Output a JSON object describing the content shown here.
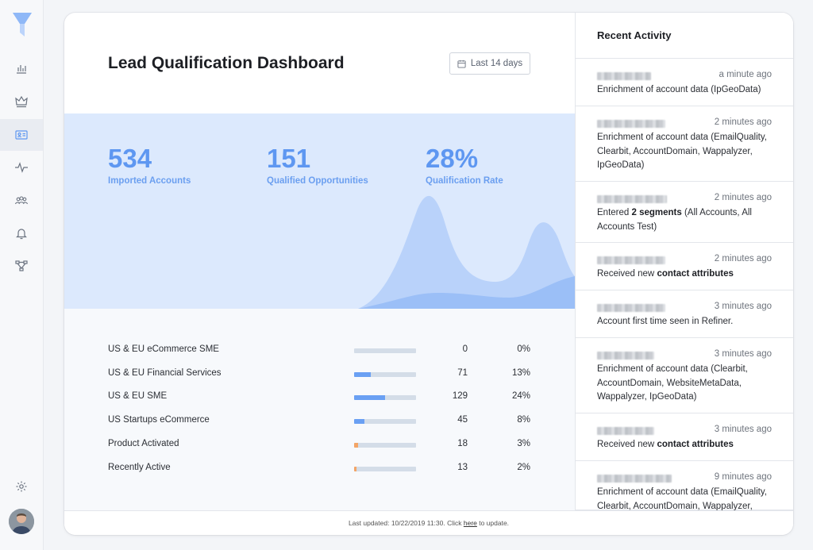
{
  "app": {
    "title": "Lead Qualification Dashboard"
  },
  "sidebar": {
    "items": [
      {
        "icon": "bar-chart-icon"
      },
      {
        "icon": "crown-icon"
      },
      {
        "icon": "contact-card-icon",
        "active": true
      },
      {
        "icon": "pulse-icon"
      },
      {
        "icon": "people-icon"
      },
      {
        "icon": "bell-icon"
      },
      {
        "icon": "workflow-icon"
      }
    ],
    "settings_icon": "gear-icon"
  },
  "header": {
    "title": "Lead Qualification Dashboard",
    "date_range_label": "Last 14 days"
  },
  "kpis": [
    {
      "value": "534",
      "label": "Imported Accounts"
    },
    {
      "value": "151",
      "label": "Qualified Opportunities"
    },
    {
      "value": "28%",
      "label": "Qualification Rate"
    }
  ],
  "segments": [
    {
      "name": "US & EU eCommerce SME",
      "count": "0",
      "pct": "0%",
      "fraction": 0.0,
      "color": "#6aa0f3"
    },
    {
      "name": "US & EU Financial Services",
      "count": "71",
      "pct": "13%",
      "fraction": 0.13,
      "color": "#6aa0f3"
    },
    {
      "name": "US & EU SME",
      "count": "129",
      "pct": "24%",
      "fraction": 0.24,
      "color": "#6aa0f3"
    },
    {
      "name": "US Startups eCommerce",
      "count": "45",
      "pct": "8%",
      "fraction": 0.08,
      "color": "#6aa0f3"
    },
    {
      "name": "Product Activated",
      "count": "18",
      "pct": "3%",
      "fraction": 0.03,
      "color": "#f3a567"
    },
    {
      "name": "Recently Active",
      "count": "13",
      "pct": "2%",
      "fraction": 0.02,
      "color": "#f3a567"
    }
  ],
  "footer": {
    "prefix": "Last updated: 10/22/2019 11:30. Click ",
    "link": "here",
    "suffix": " to update."
  },
  "activity": {
    "title": "Recent Activity",
    "items": [
      {
        "time": "a minute ago",
        "desc": [
          {
            "t": "Enrichment of account data (IpGeoData)"
          }
        ]
      },
      {
        "time": "2 minutes ago",
        "desc": [
          {
            "t": "Enrichment of account data (EmailQuality, Clearbit, AccountDomain, Wappalyzer, IpGeoData)"
          }
        ]
      },
      {
        "time": "2 minutes ago",
        "desc": [
          {
            "t": "Entered "
          },
          {
            "t": "2 segments",
            "b": true
          },
          {
            "t": " (All Accounts, All Accounts Test)"
          }
        ]
      },
      {
        "time": "2 minutes ago",
        "desc": [
          {
            "t": "Received new "
          },
          {
            "t": "contact attributes",
            "b": true
          }
        ]
      },
      {
        "time": "3 minutes ago",
        "desc": [
          {
            "t": "Account first time seen in Refiner."
          }
        ]
      },
      {
        "time": "3 minutes ago",
        "desc": [
          {
            "t": "Enrichment of account data (Clearbit, AccountDomain, WebsiteMetaData, Wappalyzer, IpGeoData)"
          }
        ]
      },
      {
        "time": "3 minutes ago",
        "desc": [
          {
            "t": "Received new "
          },
          {
            "t": "contact attributes",
            "b": true
          }
        ]
      },
      {
        "time": "9 minutes ago",
        "desc": [
          {
            "t": "Enrichment of account data (EmailQuality, Clearbit, AccountDomain, Wappalyzer,"
          }
        ]
      }
    ]
  }
}
